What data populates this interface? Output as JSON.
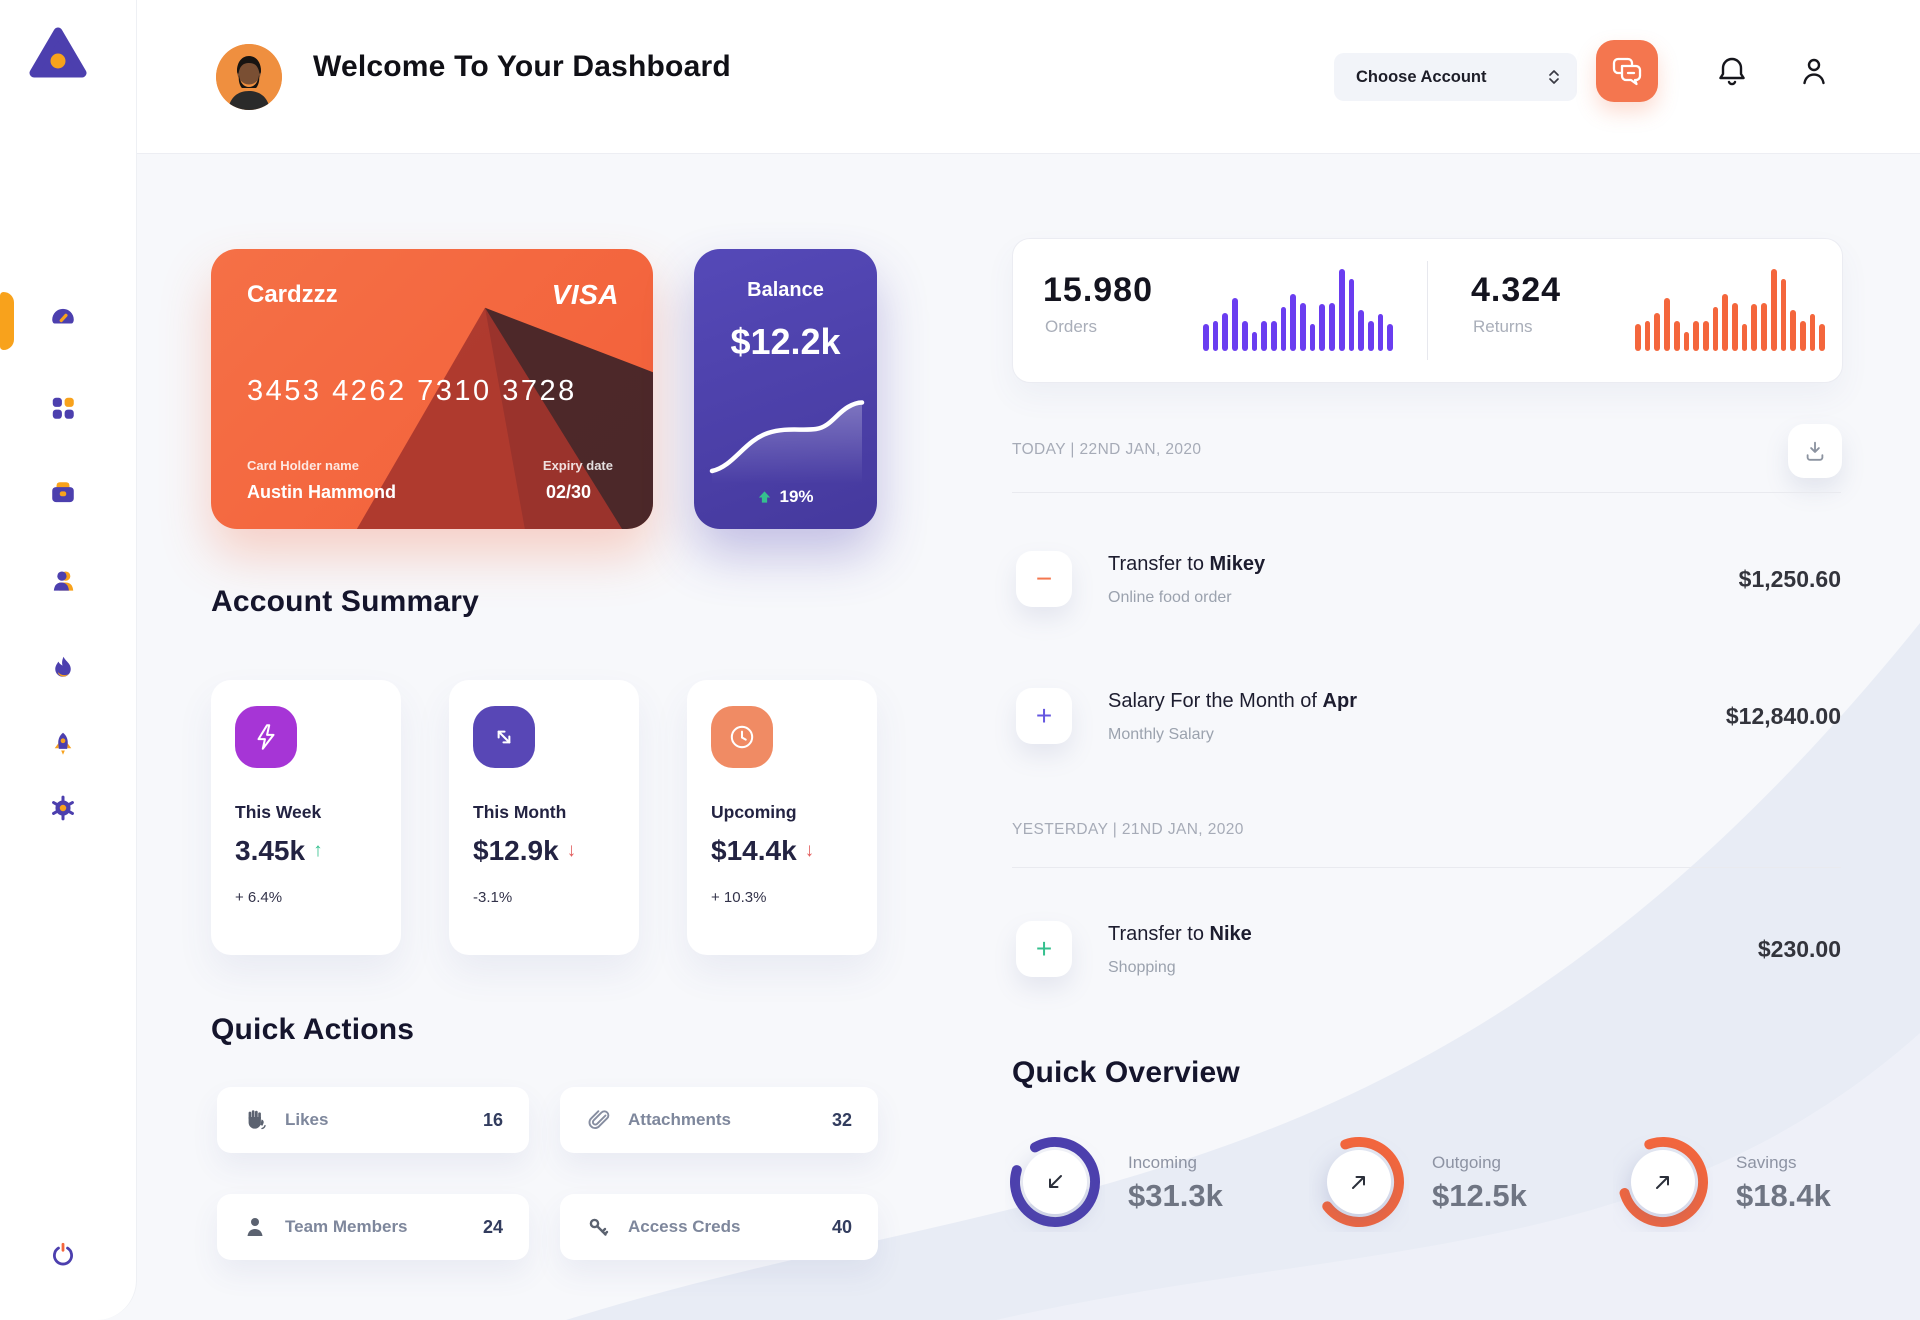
{
  "colors": {
    "accent_orange": "#f4663c",
    "accent_purple": "#4c3fae",
    "bar_purple": "#6a3df0",
    "bar_orange": "#f4663c",
    "green": "#31bf8d",
    "red": "#e25c5c"
  },
  "sidebar": {
    "logo_icon": "triangle-logo",
    "items": [
      {
        "icon": "dashboard-gauge",
        "active": true
      },
      {
        "icon": "apps-grid",
        "active": false
      },
      {
        "icon": "briefcase",
        "active": false
      },
      {
        "icon": "team",
        "active": false
      },
      {
        "icon": "flame",
        "active": false
      },
      {
        "icon": "rocket",
        "active": false
      },
      {
        "icon": "settings-gear",
        "active": false
      }
    ],
    "logout_icon": "power"
  },
  "header": {
    "title": "Welcome To Your Dashboard",
    "choose_account": "Choose Account",
    "action_icons": [
      "chat-bubbles",
      "bell",
      "user"
    ]
  },
  "bank_card": {
    "name": "Cardzzz",
    "brand": "VISA",
    "number": "3453 4262 7310 3728",
    "holder_label": "Card Holder name",
    "holder_name": "Austin Hammond",
    "expiry_label": "Expiry date",
    "expiry": "02/30"
  },
  "balance": {
    "label": "Balance",
    "value": "$12.2k",
    "change": "19%"
  },
  "stats": {
    "orders": {
      "value": "15.980",
      "label": "Orders",
      "bars": [
        33,
        37,
        46,
        65,
        37,
        23,
        36,
        36,
        54,
        70,
        58,
        33,
        57,
        58,
        100,
        88,
        50,
        37,
        45,
        33
      ]
    },
    "returns": {
      "value": "4.324",
      "label": "Returns",
      "bars": [
        33,
        37,
        46,
        65,
        37,
        23,
        36,
        36,
        54,
        70,
        58,
        33,
        57,
        58,
        100,
        88,
        50,
        37,
        45,
        33
      ]
    }
  },
  "account_summary": {
    "title": "Account Summary",
    "cards": [
      {
        "icon": "lightning",
        "icon_bg": "#a635d6",
        "label": "This Week",
        "value": "3.45k",
        "trend": "up",
        "change": "+ 6.4%"
      },
      {
        "icon": "transfer-arrows",
        "icon_bg": "#5847b6",
        "label": "This Month",
        "value": "$12.9k",
        "trend": "down",
        "change": "-3.1%"
      },
      {
        "icon": "clock",
        "icon_bg": "#f08b64",
        "label": "Upcoming",
        "value": "$14.4k",
        "trend": "down",
        "change": "+ 10.3%"
      }
    ]
  },
  "quick_actions": {
    "title": "Quick Actions",
    "items": [
      {
        "icon": "clap-hand",
        "label": "Likes",
        "count": "16"
      },
      {
        "icon": "paperclip",
        "label": "Attachments",
        "count": "32"
      },
      {
        "icon": "member",
        "label": "Team Members",
        "count": "24"
      },
      {
        "icon": "key",
        "label": "Access Creds",
        "count": "40"
      }
    ]
  },
  "transactions": {
    "download_icon": "download",
    "groups": [
      {
        "date": "TODAY | 22ND JAN, 2020",
        "items": [
          {
            "sign": "−",
            "sign_color": "#f4774e",
            "title": "Transfer to ",
            "title_bold": "Mikey",
            "note": "Online food order",
            "amount": "$1,250.60"
          },
          {
            "sign": "+",
            "sign_color": "#6557e0",
            "title": "Salary For the Month of ",
            "title_bold": "Apr",
            "note": "Monthly Salary",
            "amount": "$12,840.00"
          }
        ]
      },
      {
        "date": "YESTERDAY | 21ND JAN, 2020",
        "items": [
          {
            "sign": "+",
            "sign_color": "#35c08e",
            "title": "Transfer to ",
            "title_bold": "Nike",
            "note": "Shopping",
            "amount": "$230.00"
          }
        ]
      }
    ]
  },
  "quick_overview": {
    "title": "Quick Overview",
    "items": [
      {
        "label": "Incoming",
        "value": "$31.3k",
        "arrow": "down-left",
        "color": "#4c3fae",
        "pct": 88
      },
      {
        "label": "Outgoing",
        "value": "$12.5k",
        "arrow": "up-right",
        "color": "#f4663c",
        "pct": 70
      },
      {
        "label": "Savings",
        "value": "$18.4k",
        "arrow": "up-right",
        "color": "#f4663c",
        "pct": 76
      }
    ]
  }
}
